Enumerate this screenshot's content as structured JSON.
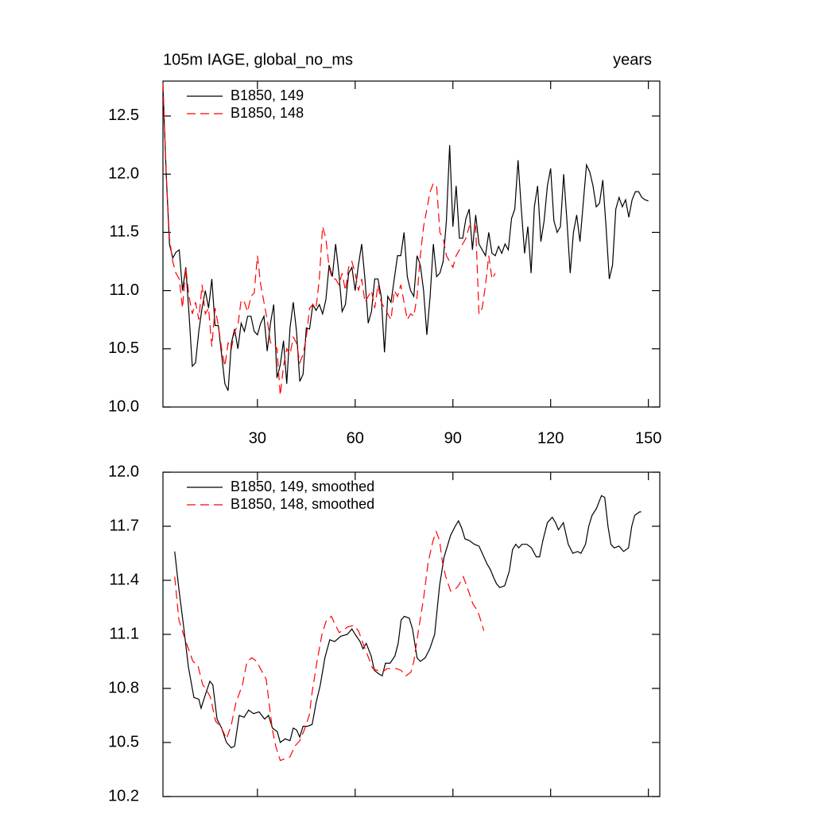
{
  "chart_data": [
    {
      "type": "line",
      "title": "105m IAGE, global_no_ms",
      "title_right": "years",
      "xlim": [
        1,
        153.5
      ],
      "xticks": [
        30,
        60,
        90,
        120,
        150
      ],
      "ylim": [
        10,
        12.8
      ],
      "yticks": [
        {
          "value": 10,
          "label": "10.0"
        },
        10.5,
        {
          "value": 11,
          "label": "11.0"
        },
        11.5,
        {
          "value": 12,
          "label": "12.0"
        },
        12.5
      ],
      "grid": false,
      "legend": "upper-left",
      "series": [
        {
          "name": "B1850, 149",
          "color": "#000000",
          "dash": "solid",
          "x": [
            1,
            2,
            3,
            4,
            5,
            6,
            7,
            8,
            9,
            10,
            11,
            12,
            13,
            14,
            15,
            16,
            17,
            18,
            19,
            20,
            21,
            22,
            23,
            24,
            25,
            26,
            27,
            28,
            29,
            30,
            31,
            32,
            33,
            34,
            35,
            36,
            37,
            38,
            39,
            40,
            41,
            42,
            43,
            44,
            45,
            46,
            47,
            48,
            49,
            50,
            51,
            52,
            53,
            54,
            55,
            56,
            57,
            58,
            59,
            60,
            61,
            62,
            63,
            64,
            65,
            66,
            67,
            68,
            69,
            70,
            71,
            72,
            73,
            74,
            75,
            76,
            77,
            78,
            79,
            80,
            81,
            82,
            83,
            84,
            85,
            86,
            87,
            88,
            89,
            90,
            91,
            92,
            93,
            94,
            95,
            96,
            97,
            98,
            99,
            100,
            101,
            102,
            103,
            104,
            105,
            106,
            107,
            108,
            109,
            110,
            111,
            112,
            113,
            114,
            115,
            116,
            117,
            118,
            119,
            120,
            121,
            122,
            123,
            124,
            125,
            126,
            127,
            128,
            129,
            130,
            131,
            132,
            133,
            134,
            135,
            136,
            137,
            138,
            139,
            140,
            141,
            142,
            143,
            144,
            145,
            146,
            147,
            148,
            149,
            150
          ],
          "values": [
            12.75,
            12.0,
            11.4,
            11.28,
            11.33,
            11.35,
            11.0,
            11.2,
            10.8,
            10.35,
            10.38,
            10.65,
            10.85,
            11.0,
            10.85,
            11.1,
            10.7,
            10.7,
            10.45,
            10.2,
            10.14,
            10.55,
            10.67,
            10.5,
            10.72,
            10.65,
            10.78,
            10.78,
            10.65,
            10.62,
            10.72,
            10.78,
            10.48,
            10.72,
            10.88,
            10.25,
            10.36,
            10.57,
            10.2,
            10.68,
            10.9,
            10.65,
            10.22,
            10.28,
            10.68,
            10.67,
            10.88,
            10.83,
            10.88,
            10.8,
            10.92,
            11.22,
            11.12,
            11.4,
            11.15,
            10.82,
            10.88,
            11.15,
            11.2,
            11.0,
            11.22,
            11.4,
            11.1,
            10.72,
            10.82,
            11.1,
            11.1,
            10.95,
            10.47,
            10.95,
            10.9,
            11.1,
            11.3,
            11.3,
            11.5,
            11.12,
            11.0,
            10.95,
            11.3,
            11.22,
            11.0,
            10.62,
            10.95,
            11.4,
            11.12,
            11.15,
            11.25,
            11.6,
            12.25,
            11.55,
            11.9,
            11.45,
            11.45,
            11.62,
            11.7,
            11.35,
            11.65,
            11.4,
            11.35,
            11.3,
            11.5,
            11.32,
            11.3,
            11.38,
            11.32,
            11.4,
            11.35,
            11.62,
            11.7,
            12.12,
            11.7,
            11.32,
            11.55,
            11.15,
            11.72,
            11.9,
            11.42,
            11.6,
            11.9,
            12.05,
            11.6,
            11.5,
            11.55,
            12.0,
            11.6,
            11.15,
            11.5,
            11.65,
            11.42,
            11.75,
            12.08,
            12.02,
            11.9,
            11.72,
            11.75,
            11.95,
            11.55,
            11.1,
            11.22,
            11.7,
            11.8,
            11.72,
            11.78,
            11.63,
            11.78,
            11.85,
            11.85,
            11.8,
            11.78,
            11.77
          ]
        },
        {
          "name": "B1850, 148",
          "color": "#ff0000",
          "dash": "dashed",
          "x": [
            1,
            2,
            3,
            4,
            5,
            6,
            7,
            8,
            9,
            10,
            11,
            12,
            13,
            14,
            15,
            16,
            17,
            18,
            19,
            20,
            21,
            22,
            23,
            24,
            25,
            26,
            27,
            28,
            29,
            30,
            31,
            32,
            33,
            34,
            35,
            36,
            37,
            38,
            39,
            40,
            41,
            42,
            43,
            44,
            45,
            46,
            47,
            48,
            49,
            50,
            51,
            52,
            53,
            54,
            55,
            56,
            57,
            58,
            59,
            60,
            61,
            62,
            63,
            64,
            65,
            66,
            67,
            68,
            69,
            70,
            71,
            72,
            73,
            74,
            75,
            76,
            77,
            78,
            79,
            80,
            81,
            82,
            83,
            84,
            85,
            86,
            87,
            88,
            89,
            90,
            91,
            92,
            93,
            94,
            95,
            96,
            97,
            98,
            99,
            100,
            101,
            102,
            103
          ],
          "values": [
            12.78,
            12.0,
            11.45,
            11.25,
            11.15,
            11.1,
            10.85,
            11.2,
            10.95,
            10.8,
            10.9,
            10.75,
            11.05,
            10.8,
            10.85,
            10.52,
            10.85,
            10.7,
            10.5,
            10.35,
            10.55,
            10.5,
            10.65,
            10.7,
            10.92,
            10.9,
            10.82,
            10.95,
            10.98,
            11.3,
            11.05,
            10.9,
            10.75,
            10.55,
            10.55,
            10.5,
            10.1,
            10.35,
            10.5,
            10.45,
            10.6,
            10.55,
            10.38,
            10.45,
            10.6,
            10.85,
            10.88,
            10.85,
            11.1,
            11.55,
            11.45,
            11.2,
            11.1,
            11.1,
            11.05,
            11.15,
            11.0,
            11.2,
            11.25,
            11.15,
            11.0,
            11.1,
            10.9,
            10.95,
            11.0,
            10.85,
            11.05,
            10.9,
            10.85,
            10.8,
            10.75,
            11.0,
            10.95,
            11.05,
            10.9,
            10.75,
            10.8,
            10.78,
            10.95,
            11.3,
            11.55,
            11.7,
            11.85,
            11.92,
            11.9,
            11.5,
            11.45,
            11.3,
            11.25,
            11.2,
            11.3,
            11.35,
            11.4,
            11.45,
            11.55,
            11.58,
            11.55,
            10.8,
            10.85,
            11.05,
            11.3,
            11.1,
            11.15
          ]
        }
      ]
    },
    {
      "type": "line",
      "xlim": [
        1,
        153.5
      ],
      "xticks": [
        30,
        60,
        90,
        120,
        150
      ],
      "xtick_labels": false,
      "ylim": [
        10.2,
        12.0
      ],
      "yticks": [
        10.2,
        10.5,
        10.8,
        11.1,
        11.4,
        11.7,
        {
          "value": 12,
          "label": "12.0"
        }
      ],
      "grid": false,
      "legend": "upper-left",
      "series": [
        {
          "name": "B1850, 149, smoothed",
          "color": "#000000",
          "dash": "solid",
          "x": [
            4.6,
            5.9,
            7.3,
            8.8,
            10.5,
            12,
            12.7,
            14.1,
            15.4,
            16.3,
            17.6,
            19,
            20.5,
            22,
            23,
            24.4,
            25.9,
            27.3,
            28.8,
            30.5,
            32.2,
            33.4,
            34.6,
            36.1,
            37,
            38.5,
            40,
            41,
            42,
            43,
            44,
            45.4,
            46.8,
            48,
            49.3,
            50.7,
            52.2,
            53.7,
            55.6,
            57.6,
            59,
            60,
            61.5,
            62.4,
            63.4,
            64.9,
            65.9,
            67.3,
            68.3,
            69.3,
            70.7,
            72.2,
            73.2,
            74.1,
            75.1,
            76.6,
            77.6,
            79,
            80,
            81.5,
            82.9,
            84.4,
            85.9,
            87.3,
            89.3,
            90.7,
            91.7,
            92.7,
            93.7,
            95.1,
            96.6,
            98,
            99,
            100.5,
            101.5,
            102.4,
            103.4,
            104.4,
            105.9,
            107.3,
            108.3,
            109.3,
            110.2,
            111.2,
            112.7,
            114.1,
            115.6,
            116.6,
            117.6,
            119,
            120.5,
            121.5,
            122.4,
            123.9,
            125.4,
            126.8,
            128.3,
            129.3,
            130.7,
            131.7,
            132.7,
            134.1,
            135.6,
            136.6,
            137.6,
            138.5,
            139.5,
            141,
            142.4,
            143.9,
            144.9,
            145.8,
            147.3,
            147.8
          ],
          "values": [
            11.56,
            11.35,
            11.15,
            10.92,
            10.75,
            10.74,
            10.69,
            10.77,
            10.84,
            10.82,
            10.63,
            10.58,
            10.5,
            10.47,
            10.48,
            10.65,
            10.64,
            10.68,
            10.66,
            10.67,
            10.63,
            10.65,
            10.58,
            10.56,
            10.5,
            10.52,
            10.51,
            10.58,
            10.57,
            10.53,
            10.59,
            10.59,
            10.6,
            10.72,
            10.82,
            10.97,
            11.07,
            11.06,
            11.09,
            11.1,
            11.13,
            11.1,
            11.06,
            11.02,
            11.05,
            10.98,
            10.9,
            10.88,
            10.87,
            10.94,
            10.94,
            10.98,
            11.05,
            11.18,
            11.2,
            11.19,
            11.13,
            10.97,
            10.95,
            10.97,
            11.02,
            11.1,
            11.37,
            11.53,
            11.65,
            11.7,
            11.73,
            11.69,
            11.63,
            11.62,
            11.6,
            11.59,
            11.55,
            11.49,
            11.46,
            11.42,
            11.38,
            11.36,
            11.37,
            11.45,
            11.57,
            11.6,
            11.58,
            11.6,
            11.6,
            11.58,
            11.53,
            11.53,
            11.62,
            11.72,
            11.75,
            11.72,
            11.68,
            11.72,
            11.6,
            11.55,
            11.56,
            11.55,
            11.6,
            11.7,
            11.76,
            11.8,
            11.87,
            11.86,
            11.7,
            11.6,
            11.58,
            11.59,
            11.56,
            11.58,
            11.7,
            11.76,
            11.78,
            11.78
          ]
        },
        {
          "name": "B1850, 148, smoothed",
          "color": "#ff0000",
          "dash": "dashed",
          "x": [
            4.6,
            5.9,
            7.3,
            8.8,
            10.2,
            11.7,
            13.2,
            14.1,
            15.6,
            17.1,
            19,
            20.5,
            22,
            23.4,
            25.4,
            26.8,
            28.3,
            29.8,
            31.2,
            32.7,
            33.7,
            34.6,
            35.6,
            37,
            38.5,
            40,
            41.5,
            43,
            44.4,
            45.9,
            46.8,
            48.3,
            49.8,
            51.2,
            52.7,
            53.7,
            55.1,
            56.1,
            57.6,
            59.5,
            61,
            62.4,
            63.9,
            65.4,
            66.8,
            68.3,
            69.8,
            71.2,
            72.7,
            74.1,
            75.6,
            77.1,
            78,
            79.5,
            81,
            82.4,
            83.9,
            84.9,
            85.9,
            86.8,
            87.8,
            89.3,
            90.7,
            91.7,
            93.2,
            94.6,
            96.1,
            97.6,
            98.5,
            99.5
          ],
          "values": [
            11.42,
            11.18,
            11.1,
            11.02,
            10.95,
            10.93,
            10.82,
            10.8,
            10.75,
            10.62,
            10.58,
            10.52,
            10.6,
            10.72,
            10.82,
            10.95,
            10.97,
            10.95,
            10.9,
            10.85,
            10.7,
            10.57,
            10.48,
            10.4,
            10.41,
            10.42,
            10.48,
            10.51,
            10.57,
            10.65,
            10.78,
            10.95,
            11.1,
            11.18,
            11.2,
            11.16,
            11.11,
            11.12,
            11.14,
            11.15,
            11.12,
            11.05,
            10.98,
            10.91,
            10.9,
            10.89,
            10.91,
            10.91,
            10.91,
            10.9,
            10.87,
            10.89,
            10.95,
            11.13,
            11.3,
            11.5,
            11.62,
            11.67,
            11.62,
            11.5,
            11.42,
            11.34,
            11.35,
            11.37,
            11.42,
            11.35,
            11.27,
            11.23,
            11.18,
            11.12
          ]
        }
      ]
    }
  ]
}
